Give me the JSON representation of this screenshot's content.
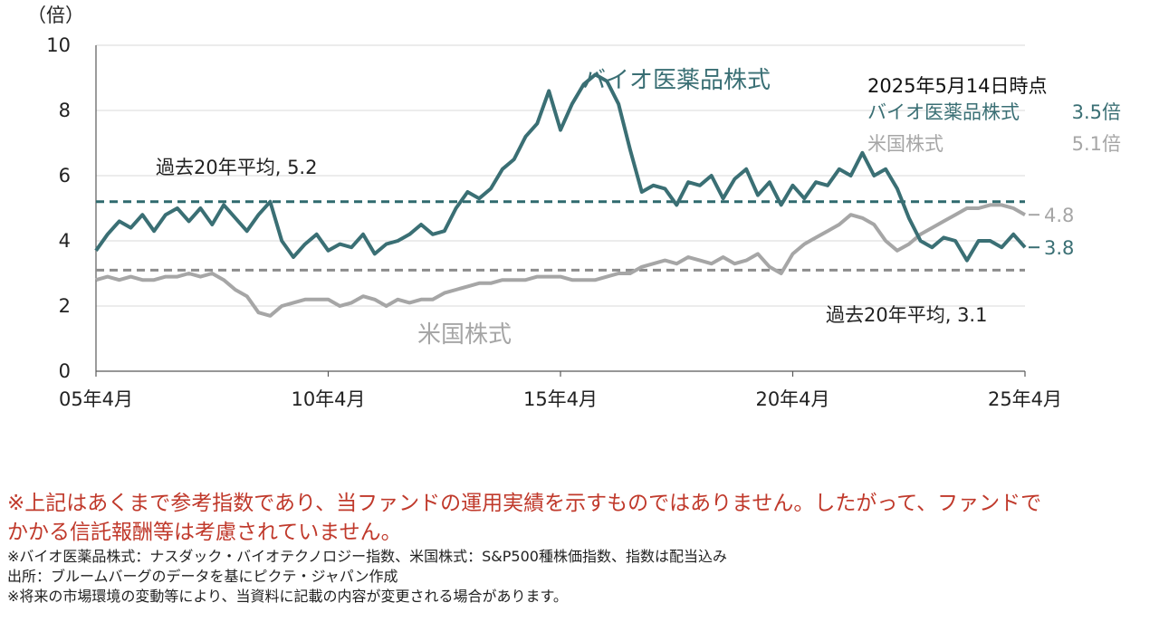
{
  "chart_data": {
    "type": "line",
    "unit_label": "（倍）",
    "ylim": [
      0,
      10
    ],
    "yticks": [
      "0",
      "2",
      "4",
      "6",
      "8",
      "10"
    ],
    "x_tick_labels": [
      "05年4月",
      "10年4月",
      "15年4月",
      "20年4月",
      "25年4月"
    ],
    "x_range": [
      2005.25,
      2025.25
    ],
    "grid": true,
    "series": [
      {
        "name": "バイオ医薬品株式",
        "color": "#3a6f74",
        "points": [
          [
            2005.25,
            3.7
          ],
          [
            2005.5,
            4.2
          ],
          [
            2005.75,
            4.6
          ],
          [
            2006.0,
            4.4
          ],
          [
            2006.25,
            4.8
          ],
          [
            2006.5,
            4.3
          ],
          [
            2006.75,
            4.8
          ],
          [
            2007.0,
            5.0
          ],
          [
            2007.25,
            4.6
          ],
          [
            2007.5,
            5.0
          ],
          [
            2007.75,
            4.5
          ],
          [
            2008.0,
            5.1
          ],
          [
            2008.25,
            4.7
          ],
          [
            2008.5,
            4.3
          ],
          [
            2008.75,
            4.8
          ],
          [
            2009.0,
            5.2
          ],
          [
            2009.25,
            4.0
          ],
          [
            2009.5,
            3.5
          ],
          [
            2009.75,
            3.9
          ],
          [
            2010.0,
            4.2
          ],
          [
            2010.25,
            3.7
          ],
          [
            2010.5,
            3.9
          ],
          [
            2010.75,
            3.8
          ],
          [
            2011.0,
            4.2
          ],
          [
            2011.25,
            3.6
          ],
          [
            2011.5,
            3.9
          ],
          [
            2011.75,
            4.0
          ],
          [
            2012.0,
            4.2
          ],
          [
            2012.25,
            4.5
          ],
          [
            2012.5,
            4.2
          ],
          [
            2012.75,
            4.3
          ],
          [
            2013.0,
            5.0
          ],
          [
            2013.25,
            5.5
          ],
          [
            2013.5,
            5.3
          ],
          [
            2013.75,
            5.6
          ],
          [
            2014.0,
            6.2
          ],
          [
            2014.25,
            6.5
          ],
          [
            2014.5,
            7.2
          ],
          [
            2014.75,
            7.6
          ],
          [
            2015.0,
            8.6
          ],
          [
            2015.25,
            7.4
          ],
          [
            2015.5,
            8.2
          ],
          [
            2015.75,
            8.8
          ],
          [
            2016.0,
            9.1
          ],
          [
            2016.25,
            8.9
          ],
          [
            2016.5,
            8.2
          ],
          [
            2016.75,
            6.8
          ],
          [
            2017.0,
            5.5
          ],
          [
            2017.25,
            5.7
          ],
          [
            2017.5,
            5.6
          ],
          [
            2017.75,
            5.1
          ],
          [
            2018.0,
            5.8
          ],
          [
            2018.25,
            5.7
          ],
          [
            2018.5,
            6.0
          ],
          [
            2018.75,
            5.3
          ],
          [
            2019.0,
            5.9
          ],
          [
            2019.25,
            6.2
          ],
          [
            2019.5,
            5.4
          ],
          [
            2019.75,
            5.8
          ],
          [
            2020.0,
            5.1
          ],
          [
            2020.25,
            5.7
          ],
          [
            2020.5,
            5.3
          ],
          [
            2020.75,
            5.8
          ],
          [
            2021.0,
            5.7
          ],
          [
            2021.25,
            6.2
          ],
          [
            2021.5,
            6.0
          ],
          [
            2021.75,
            6.7
          ],
          [
            2022.0,
            6.0
          ],
          [
            2022.25,
            6.2
          ],
          [
            2022.5,
            5.6
          ],
          [
            2022.75,
            4.7
          ],
          [
            2023.0,
            4.0
          ],
          [
            2023.25,
            3.8
          ],
          [
            2023.5,
            4.1
          ],
          [
            2023.75,
            4.0
          ],
          [
            2024.0,
            3.4
          ],
          [
            2024.25,
            4.0
          ],
          [
            2024.5,
            4.0
          ],
          [
            2024.75,
            3.8
          ],
          [
            2025.0,
            4.2
          ],
          [
            2025.25,
            3.8
          ]
        ]
      },
      {
        "name": "米国株式",
        "color": "#a6a6a6",
        "points": [
          [
            2005.25,
            2.8
          ],
          [
            2005.5,
            2.9
          ],
          [
            2005.75,
            2.8
          ],
          [
            2006.0,
            2.9
          ],
          [
            2006.25,
            2.8
          ],
          [
            2006.5,
            2.8
          ],
          [
            2006.75,
            2.9
          ],
          [
            2007.0,
            2.9
          ],
          [
            2007.25,
            3.0
          ],
          [
            2007.5,
            2.9
          ],
          [
            2007.75,
            3.0
          ],
          [
            2008.0,
            2.8
          ],
          [
            2008.25,
            2.5
          ],
          [
            2008.5,
            2.3
          ],
          [
            2008.75,
            1.8
          ],
          [
            2009.0,
            1.7
          ],
          [
            2009.25,
            2.0
          ],
          [
            2009.5,
            2.1
          ],
          [
            2009.75,
            2.2
          ],
          [
            2010.0,
            2.2
          ],
          [
            2010.25,
            2.2
          ],
          [
            2010.5,
            2.0
          ],
          [
            2010.75,
            2.1
          ],
          [
            2011.0,
            2.3
          ],
          [
            2011.25,
            2.2
          ],
          [
            2011.5,
            2.0
          ],
          [
            2011.75,
            2.2
          ],
          [
            2012.0,
            2.1
          ],
          [
            2012.25,
            2.2
          ],
          [
            2012.5,
            2.2
          ],
          [
            2012.75,
            2.4
          ],
          [
            2013.0,
            2.5
          ],
          [
            2013.25,
            2.6
          ],
          [
            2013.5,
            2.7
          ],
          [
            2013.75,
            2.7
          ],
          [
            2014.0,
            2.8
          ],
          [
            2014.25,
            2.8
          ],
          [
            2014.5,
            2.8
          ],
          [
            2014.75,
            2.9
          ],
          [
            2015.0,
            2.9
          ],
          [
            2015.25,
            2.9
          ],
          [
            2015.5,
            2.8
          ],
          [
            2015.75,
            2.8
          ],
          [
            2016.0,
            2.8
          ],
          [
            2016.25,
            2.9
          ],
          [
            2016.5,
            3.0
          ],
          [
            2016.75,
            3.0
          ],
          [
            2017.0,
            3.2
          ],
          [
            2017.25,
            3.3
          ],
          [
            2017.5,
            3.4
          ],
          [
            2017.75,
            3.3
          ],
          [
            2018.0,
            3.5
          ],
          [
            2018.25,
            3.4
          ],
          [
            2018.5,
            3.3
          ],
          [
            2018.75,
            3.5
          ],
          [
            2019.0,
            3.3
          ],
          [
            2019.25,
            3.4
          ],
          [
            2019.5,
            3.6
          ],
          [
            2019.75,
            3.2
          ],
          [
            2020.0,
            3.0
          ],
          [
            2020.25,
            3.6
          ],
          [
            2020.5,
            3.9
          ],
          [
            2020.75,
            4.1
          ],
          [
            2021.0,
            4.3
          ],
          [
            2021.25,
            4.5
          ],
          [
            2021.5,
            4.8
          ],
          [
            2021.75,
            4.7
          ],
          [
            2022.0,
            4.5
          ],
          [
            2022.25,
            4.0
          ],
          [
            2022.5,
            3.7
          ],
          [
            2022.75,
            3.9
          ],
          [
            2023.0,
            4.2
          ],
          [
            2023.25,
            4.4
          ],
          [
            2023.5,
            4.6
          ],
          [
            2023.75,
            4.8
          ],
          [
            2024.0,
            5.0
          ],
          [
            2024.25,
            5.0
          ],
          [
            2024.5,
            5.1
          ],
          [
            2024.75,
            5.1
          ],
          [
            2025.0,
            5.0
          ],
          [
            2025.25,
            4.8
          ]
        ]
      }
    ],
    "reference_lines": [
      {
        "value": 5.2,
        "color": "#2f6a6e",
        "label": "過去20年平均, 5.2"
      },
      {
        "value": 3.1,
        "color": "#8c8c8c",
        "label": "過去20年平均, 3.1"
      }
    ],
    "series_labels": [
      {
        "text": "バイオ医薬品株式",
        "color": "#3a6f74"
      },
      {
        "text": "米国株式",
        "color": "#a6a6a6"
      }
    ],
    "end_value_labels": [
      {
        "text": "4.8",
        "value": 4.8
      },
      {
        "text": "3.8",
        "value": 3.8
      }
    ],
    "snapshot": {
      "title": "2025年5月14日時点",
      "rows": [
        {
          "name": "バイオ医薬品株式",
          "value": "3.5倍",
          "color": "#3a6f74"
        },
        {
          "name": "米国株式",
          "value": "5.1倍",
          "color": "#a6a6a6"
        }
      ]
    }
  },
  "notes": {
    "main_line1": "※上記はあくまで参考指数であり、当ファンドの運用実績を示すものではありません。したがって、ファンドで",
    "main_line2": "かかる信託報酬等は考慮されていません。",
    "small_line1": "※バイオ医薬品株式：ナスダック・バイオテクノロジー指数、米国株式：S&P500種株価指数、指数は配当込み",
    "small_line2": "出所：ブルームバーグのデータを基にピクテ・ジャパン作成",
    "small_line3": "※将来の市場環境の変動等により、当資料に記載の内容が変更される場合があります。"
  }
}
